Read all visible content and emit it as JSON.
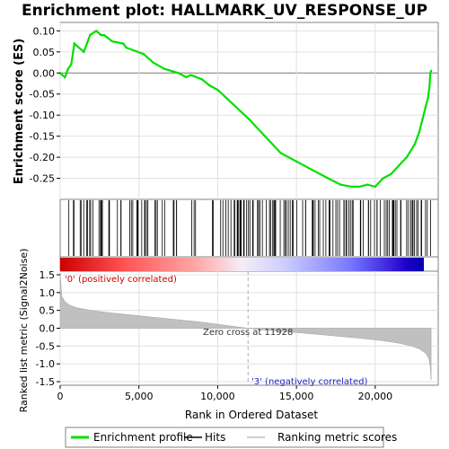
{
  "chart_data": {
    "type": "line",
    "title": "Enrichment plot: HALLMARK_UV_RESPONSE_UP",
    "xlabel": "Rank in Ordered Dataset",
    "ylabel_top": "Enrichment score (ES)",
    "ylabel_bottom": "Ranked list metric (Signal2Noise)",
    "x_range": [
      0,
      24000
    ],
    "x_ticks": [
      0,
      5000,
      10000,
      15000,
      20000
    ],
    "x_tick_labels": [
      "0",
      "5,000",
      "10,000",
      "15,000",
      "20,000"
    ],
    "es_ylim": [
      -0.3,
      0.12
    ],
    "es_ticks": [
      0.1,
      0.05,
      0.0,
      -0.05,
      -0.1,
      -0.15,
      -0.2,
      -0.25
    ],
    "es_tick_labels": [
      "0.10",
      "0.05",
      "0.00",
      "-0.05",
      "-0.10",
      "-0.15",
      "-0.20",
      "-0.25"
    ],
    "metric_ylim": [
      -1.6,
      1.6
    ],
    "metric_ticks": [
      1.5,
      1.0,
      0.5,
      0.0,
      -0.5,
      -1.0,
      -1.5
    ],
    "metric_tick_labels": [
      "1.5",
      "1.0",
      "0.5",
      "0.0",
      "-0.5",
      "-1.0",
      "-1.5"
    ],
    "grid": true,
    "es_color": "#00e000",
    "series": [
      {
        "name": "Enrichment profile",
        "x": [
          0,
          300,
          500,
          700,
          900,
          1500,
          1700,
          1900,
          2100,
          2300,
          2600,
          2800,
          3300,
          4000,
          4200,
          5300,
          5900,
          6600,
          7500,
          8000,
          8300,
          9000,
          9500,
          10000,
          12000,
          13000,
          14000,
          15000,
          16000,
          17000,
          17800,
          18500,
          19000,
          19500,
          20000,
          20500,
          21000,
          21500,
          22000,
          22500,
          22800,
          23000,
          23200,
          23350,
          23450,
          23500,
          23550
        ],
        "y": [
          0.0,
          -0.01,
          0.01,
          0.02,
          0.07,
          0.05,
          0.07,
          0.09,
          0.095,
          0.1,
          0.09,
          0.09,
          0.075,
          0.07,
          0.06,
          0.045,
          0.025,
          0.01,
          0.0,
          -0.01,
          -0.005,
          -0.015,
          -0.03,
          -0.04,
          -0.11,
          -0.15,
          -0.19,
          -0.21,
          -0.23,
          -0.25,
          -0.265,
          -0.27,
          -0.27,
          -0.265,
          -0.27,
          -0.25,
          -0.24,
          -0.22,
          -0.2,
          -0.17,
          -0.14,
          -0.11,
          -0.08,
          -0.06,
          -0.03,
          0.0,
          0.005
        ]
      },
      {
        "name": "Ranking metric scores",
        "x": [
          0,
          100,
          300,
          600,
          1000,
          2000,
          3000,
          5000,
          7000,
          9000,
          10500,
          11928,
          13000,
          15000,
          17000,
          19000,
          20500,
          21500,
          22300,
          22800,
          23200,
          23400,
          23500,
          23550
        ],
        "y": [
          1.55,
          0.9,
          0.75,
          0.65,
          0.58,
          0.5,
          0.44,
          0.35,
          0.26,
          0.17,
          0.08,
          0.0,
          -0.05,
          -0.12,
          -0.2,
          -0.28,
          -0.35,
          -0.42,
          -0.5,
          -0.58,
          -0.7,
          -0.85,
          -1.1,
          -1.45
        ]
      }
    ],
    "hits_legend": "Hits",
    "legend_position": "bottom",
    "annotations": {
      "pos_label": "'0' (positively correlated)",
      "neg_label": "'3' (negatively correlated)",
      "zero_cross": "Zero cross at 11928",
      "zero_cross_x": 11928
    }
  }
}
